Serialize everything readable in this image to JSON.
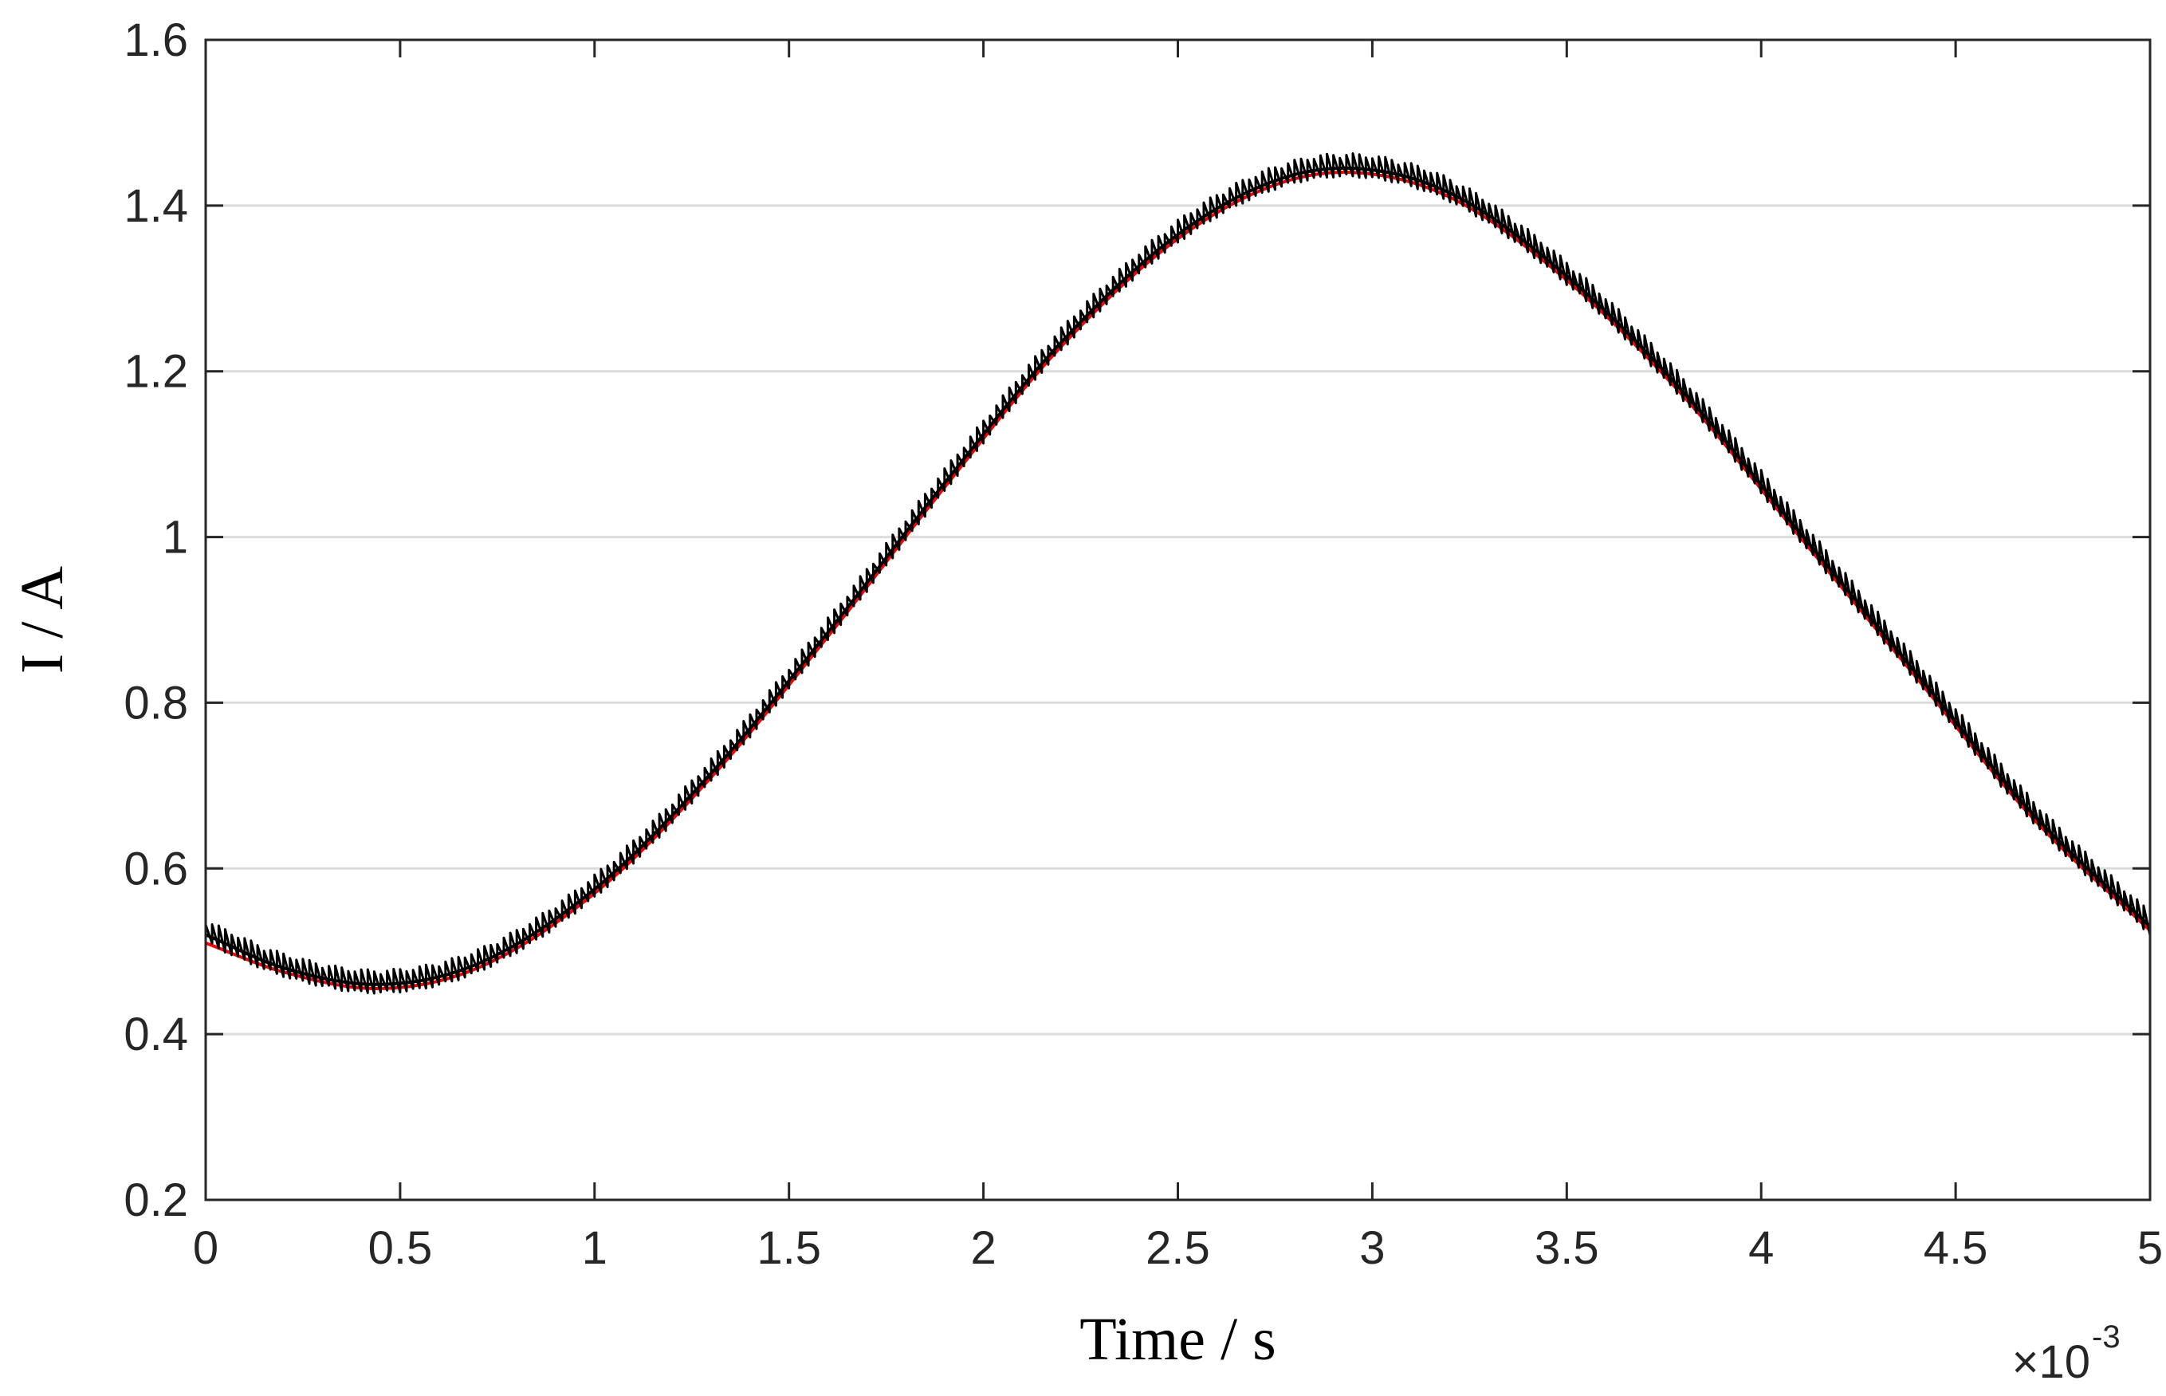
{
  "chart_data": {
    "type": "line",
    "xlabel": "Time / s",
    "ylabel": "I / A",
    "x_multiplier": {
      "base": "×10",
      "exponent": "-3"
    },
    "xlim": [
      0,
      5
    ],
    "ylim": [
      0.2,
      1.6
    ],
    "x_ticks": [
      "0",
      "0.5",
      "1",
      "1.5",
      "2",
      "2.5",
      "3",
      "3.5",
      "4",
      "4.5",
      "5"
    ],
    "y_ticks": [
      "0.2",
      "0.4",
      "0.6",
      "0.8",
      "1",
      "1.2",
      "1.4",
      "1.6"
    ],
    "grid": "horizontal",
    "series": [
      {
        "color": "#ff0000",
        "style": "smooth",
        "x": [
          0,
          0.2,
          0.45,
          0.7,
          1.0,
          1.3,
          1.6,
          1.9,
          2.2,
          2.5,
          2.75,
          2.95,
          3.2,
          3.5,
          3.8,
          4.1,
          4.4,
          4.7,
          5.0
        ],
        "values": [
          0.51,
          0.475,
          0.455,
          0.48,
          0.57,
          0.71,
          0.88,
          1.06,
          1.23,
          1.36,
          1.425,
          1.44,
          1.41,
          1.31,
          1.17,
          1.0,
          0.83,
          0.66,
          0.525
        ]
      },
      {
        "color": "#000000",
        "style": "ripple",
        "x": [
          0,
          0.2,
          0.45,
          0.7,
          1.0,
          1.3,
          1.6,
          1.9,
          2.2,
          2.5,
          2.75,
          2.95,
          3.2,
          3.5,
          3.8,
          4.1,
          4.4,
          4.7,
          5.0
        ],
        "values": [
          0.52,
          0.48,
          0.46,
          0.485,
          0.575,
          0.715,
          0.885,
          1.065,
          1.235,
          1.365,
          1.43,
          1.445,
          1.415,
          1.315,
          1.175,
          1.005,
          0.835,
          0.665,
          0.53
        ]
      }
    ]
  }
}
